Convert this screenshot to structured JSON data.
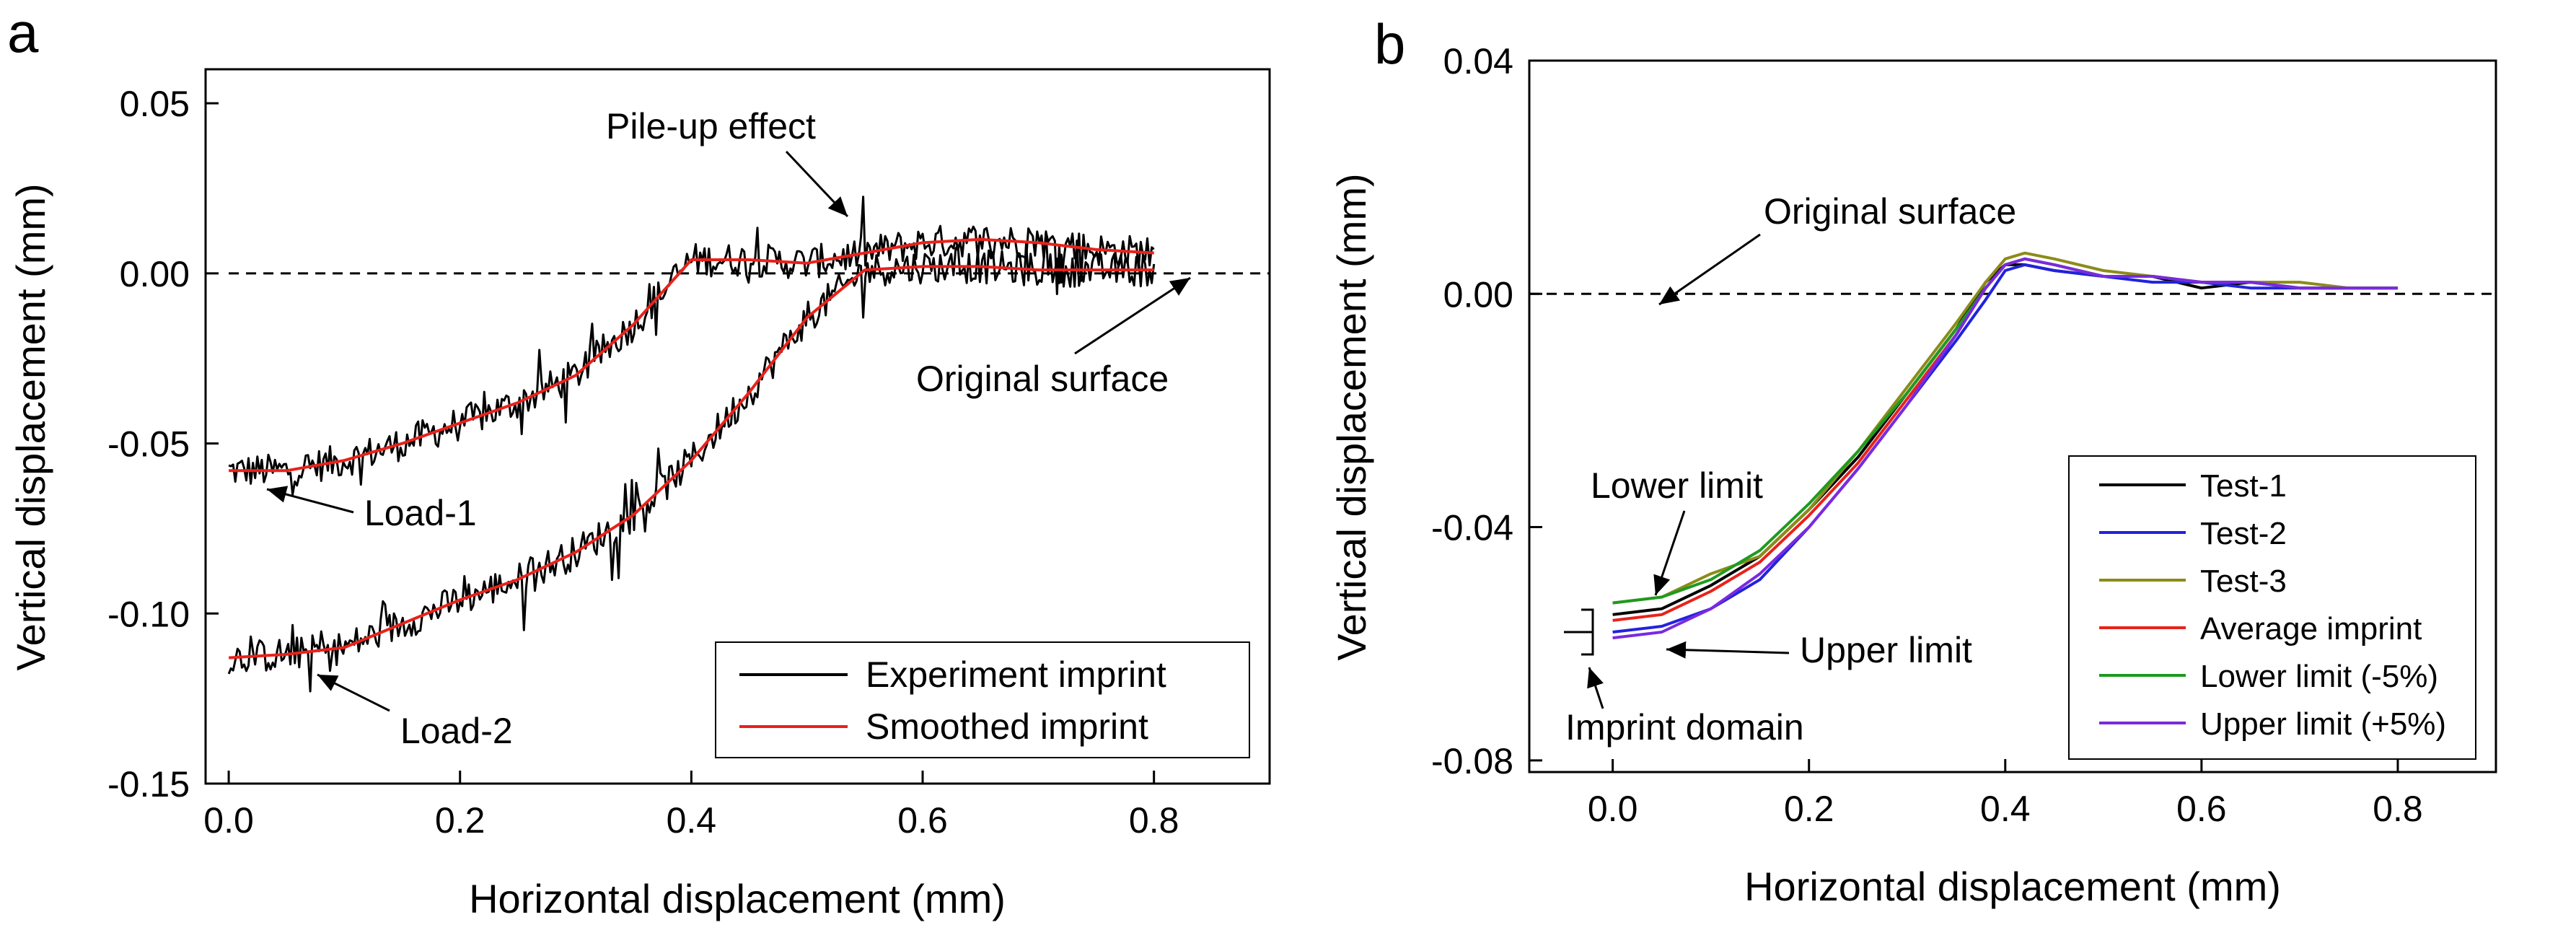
{
  "chart_data": [
    {
      "panel": "a",
      "type": "line",
      "xlabel": "Horizontal displacement (mm)",
      "ylabel": "Vertical displacement (mm)",
      "xlim": [
        -0.02,
        0.9
      ],
      "ylim": [
        -0.15,
        0.06
      ],
      "xticks": [
        0.0,
        0.2,
        0.4,
        0.6,
        0.8
      ],
      "xtick_labels": [
        "0.0",
        "0.2",
        "0.4",
        "0.6",
        "0.8"
      ],
      "yticks": [
        0.05,
        0.0,
        -0.05,
        -0.1,
        -0.15
      ],
      "ytick_labels": [
        "0.05",
        "0.00",
        "-0.05",
        "-0.10",
        "-0.15"
      ],
      "grid": false,
      "reference_line": {
        "y": 0.0,
        "style": "dashed",
        "x_range": [
          0.0,
          0.9
        ]
      },
      "series": [
        {
          "name": "Experiment imprint",
          "color": "#000000",
          "noise": 0.009,
          "x": [
            0.0,
            0.05,
            0.1,
            0.15,
            0.2,
            0.25,
            0.3,
            0.35,
            0.4,
            0.45,
            0.5,
            0.55,
            0.6,
            0.65,
            0.7,
            0.75,
            0.8
          ],
          "y": [
            -0.058,
            -0.058,
            -0.055,
            -0.05,
            -0.044,
            -0.038,
            -0.03,
            -0.015,
            0.004,
            0.004,
            0.003,
            0.006,
            0.009,
            0.01,
            0.009,
            0.007,
            0.006
          ]
        },
        {
          "name": "Experiment imprint",
          "color": "#000000",
          "noise": 0.009,
          "x": [
            0.0,
            0.05,
            0.1,
            0.15,
            0.2,
            0.25,
            0.3,
            0.35,
            0.4,
            0.45,
            0.5,
            0.55,
            0.6,
            0.65,
            0.7,
            0.75,
            0.8
          ],
          "y": [
            -0.113,
            -0.112,
            -0.11,
            -0.103,
            -0.096,
            -0.09,
            -0.082,
            -0.071,
            -0.055,
            -0.035,
            -0.013,
            0.001,
            0.002,
            0.002,
            0.001,
            0.001,
            0.001
          ]
        },
        {
          "name": "Smoothed imprint",
          "color": "#e8221b",
          "noise": 0,
          "x": [
            0.0,
            0.05,
            0.1,
            0.15,
            0.2,
            0.25,
            0.3,
            0.35,
            0.4,
            0.45,
            0.5,
            0.55,
            0.6,
            0.65,
            0.7,
            0.75,
            0.8
          ],
          "y": [
            -0.058,
            -0.058,
            -0.055,
            -0.05,
            -0.044,
            -0.038,
            -0.03,
            -0.015,
            0.004,
            0.004,
            0.003,
            0.006,
            0.009,
            0.01,
            0.009,
            0.007,
            0.006
          ]
        },
        {
          "name": "Smoothed imprint",
          "color": "#e8221b",
          "noise": 0,
          "x": [
            0.0,
            0.05,
            0.1,
            0.15,
            0.2,
            0.25,
            0.3,
            0.35,
            0.4,
            0.45,
            0.5,
            0.55,
            0.6,
            0.65,
            0.7,
            0.75,
            0.8
          ],
          "y": [
            -0.113,
            -0.112,
            -0.11,
            -0.103,
            -0.096,
            -0.09,
            -0.082,
            -0.071,
            -0.055,
            -0.035,
            -0.013,
            0.001,
            0.002,
            0.002,
            0.001,
            0.001,
            0.001
          ]
        }
      ],
      "legend": [
        {
          "label": "Experiment imprint",
          "color": "#000000"
        },
        {
          "label": "Smoothed imprint",
          "color": "#e8221b"
        }
      ],
      "legend_position": "bottom-right",
      "annotations": [
        {
          "text": "Pile-up effect",
          "arrow_to": [
            0.535,
            0.016
          ]
        },
        {
          "text": "Original surface",
          "arrow_to": [
            0.84,
            0.0
          ]
        },
        {
          "text": "Load-1",
          "arrow_to": [
            0.04,
            -0.06
          ]
        },
        {
          "text": "Load-2",
          "arrow_to": [
            0.08,
            -0.118
          ]
        }
      ]
    },
    {
      "panel": "b",
      "type": "line",
      "xlabel": "Horizontal displacement (mm)",
      "ylabel": "Vertical displacement (mm)",
      "xlim": [
        -0.085,
        0.9
      ],
      "ylim": [
        -0.082,
        0.04
      ],
      "xticks": [
        0.0,
        0.2,
        0.4,
        0.6,
        0.8
      ],
      "xtick_labels": [
        "0.0",
        "0.2",
        "0.4",
        "0.6",
        "0.8"
      ],
      "yticks": [
        0.04,
        0.0,
        -0.04,
        -0.08
      ],
      "ytick_labels": [
        "0.04",
        "0.00",
        "-0.04",
        "-0.08"
      ],
      "grid": false,
      "reference_line": {
        "y": 0.0,
        "style": "dashed",
        "x_range": [
          -0.085,
          0.9
        ]
      },
      "series": [
        {
          "name": "Test-1",
          "color": "#000000",
          "x": [
            0.0,
            0.05,
            0.1,
            0.15,
            0.2,
            0.25,
            0.3,
            0.35,
            0.38,
            0.4,
            0.42,
            0.45,
            0.5,
            0.55,
            0.6,
            0.65,
            0.7,
            0.75,
            0.8
          ],
          "y": [
            -0.055,
            -0.054,
            -0.05,
            -0.045,
            -0.037,
            -0.028,
            -0.017,
            -0.006,
            0.002,
            0.005,
            0.005,
            0.004,
            0.003,
            0.003,
            0.001,
            0.002,
            0.001,
            0.001,
            0.001
          ]
        },
        {
          "name": "Test-2",
          "color": "#2222dd",
          "x": [
            0.0,
            0.05,
            0.1,
            0.15,
            0.2,
            0.25,
            0.3,
            0.35,
            0.38,
            0.4,
            0.42,
            0.45,
            0.5,
            0.55,
            0.6,
            0.65,
            0.7,
            0.75,
            0.8
          ],
          "y": [
            -0.058,
            -0.057,
            -0.054,
            -0.049,
            -0.04,
            -0.03,
            -0.019,
            -0.008,
            -0.001,
            0.004,
            0.005,
            0.004,
            0.003,
            0.002,
            0.002,
            0.001,
            0.001,
            0.001,
            0.001
          ]
        },
        {
          "name": "Test-3",
          "color": "#8b8b1a",
          "x": [
            0.0,
            0.05,
            0.1,
            0.15,
            0.2,
            0.25,
            0.3,
            0.35,
            0.38,
            0.4,
            0.42,
            0.45,
            0.5,
            0.55,
            0.6,
            0.65,
            0.7,
            0.75,
            0.8
          ],
          "y": [
            -0.053,
            -0.052,
            -0.048,
            -0.045,
            -0.037,
            -0.027,
            -0.016,
            -0.005,
            0.002,
            0.006,
            0.007,
            0.006,
            0.004,
            0.003,
            0.002,
            0.002,
            0.002,
            0.001,
            0.001
          ]
        },
        {
          "name": "Average imprint",
          "color": "#e8221b",
          "x": [
            0.0,
            0.05,
            0.1,
            0.15,
            0.2,
            0.25,
            0.3,
            0.35,
            0.38,
            0.4,
            0.42,
            0.45,
            0.5,
            0.55,
            0.6,
            0.65,
            0.7,
            0.75,
            0.8
          ],
          "y": [
            -0.056,
            -0.055,
            -0.051,
            -0.046,
            -0.038,
            -0.029,
            -0.018,
            -0.007,
            0.001,
            0.005,
            0.006,
            0.005,
            0.003,
            0.003,
            0.002,
            0.002,
            0.001,
            0.001,
            0.001
          ]
        },
        {
          "name": "Lower limit (-5%)",
          "color": "#1f9a1f",
          "x": [
            0.0,
            0.05,
            0.1,
            0.15,
            0.2,
            0.25,
            0.3,
            0.35,
            0.38,
            0.4,
            0.42,
            0.45,
            0.5,
            0.55,
            0.6,
            0.65,
            0.7,
            0.75,
            0.8
          ],
          "y": [
            -0.053,
            -0.052,
            -0.049,
            -0.044,
            -0.036,
            -0.027,
            -0.017,
            -0.006,
            0.001,
            0.005,
            0.006,
            0.005,
            0.003,
            0.003,
            0.002,
            0.002,
            0.001,
            0.001,
            0.001
          ]
        },
        {
          "name": "Upper limit (+5%)",
          "color": "#7a2ae0",
          "x": [
            0.0,
            0.05,
            0.1,
            0.15,
            0.2,
            0.25,
            0.3,
            0.35,
            0.38,
            0.4,
            0.42,
            0.45,
            0.5,
            0.55,
            0.6,
            0.65,
            0.7,
            0.75,
            0.8
          ],
          "y": [
            -0.059,
            -0.058,
            -0.054,
            -0.048,
            -0.04,
            -0.03,
            -0.019,
            -0.007,
            0.001,
            0.005,
            0.006,
            0.005,
            0.003,
            0.003,
            0.002,
            0.002,
            0.001,
            0.001,
            0.001
          ]
        }
      ],
      "legend": [
        {
          "label": "Test-1",
          "color": "#000000"
        },
        {
          "label": "Test-2",
          "color": "#2222dd"
        },
        {
          "label": "Test-3",
          "color": "#8b8b1a"
        },
        {
          "label": "Average imprint",
          "color": "#e8221b"
        },
        {
          "label": "Lower limit (-5%)",
          "color": "#1f9a1f"
        },
        {
          "label": "Upper limit (+5%)",
          "color": "#7a2ae0"
        }
      ],
      "legend_position": "bottom-right",
      "annotations": [
        {
          "text": "Original surface",
          "arrow_to": [
            0.08,
            0.001
          ]
        },
        {
          "text": "Lower limit",
          "arrow_to": [
            0.06,
            -0.051
          ]
        },
        {
          "text": "Upper limit",
          "arrow_to": [
            0.04,
            -0.059
          ]
        },
        {
          "text": "Imprint domain",
          "arrow_to": [
            -0.01,
            -0.061
          ]
        }
      ]
    }
  ],
  "panels": {
    "a": {
      "letter": "a"
    },
    "b": {
      "letter": "b"
    }
  }
}
